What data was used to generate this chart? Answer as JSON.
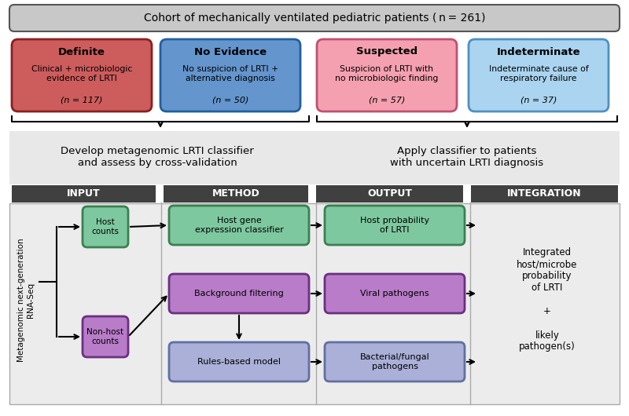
{
  "title": "Cohort of mechanically ventilated pediatric patients ( n = 261)",
  "cohort_box_color": "#c8c8c8",
  "cohort_box_edge": "#555555",
  "boxes": [
    {
      "label": "Definite",
      "sub": "Clinical + microbiologic\nevidence of LRTI",
      "n": "(n = 117)",
      "fill": "#cd5c5c",
      "edge": "#8b2020"
    },
    {
      "label": "No Evidence",
      "sub": "No suspicion of LRTI +\nalternative diagnosis",
      "n": "(n = 50)",
      "fill": "#6495cd",
      "edge": "#2060a0"
    },
    {
      "label": "Suspected",
      "sub": "Suspicion of LRTI with\nno microbiologic finding",
      "n": "(n = 57)",
      "fill": "#f4a0b0",
      "edge": "#c05070"
    },
    {
      "label": "Indeterminate",
      "sub": "Indeterminate cause of\nrespiratory failure",
      "n": "(n = 37)",
      "fill": "#aad4f0",
      "edge": "#5090c0"
    }
  ],
  "mid_bg": "#e8e8e8",
  "mid_left_text": "Develop metagenomic LRTI classifier\nand assess by cross-validation",
  "mid_right_text": "Apply classifier to patients\nwith uncertain LRTI diagnosis",
  "section_labels": [
    "INPUT",
    "METHOD",
    "OUTPUT",
    "INTEGRATION"
  ],
  "section_label_bg": "#404040",
  "section_label_color": "#ffffff",
  "bottom_bg": "#ececec",
  "bottom_edge": "#aaaaaa",
  "input_rna_text": "Metagenomic next-generation\nRNA-Seq",
  "host_counts_text": "Host\ncounts",
  "nonhost_counts_text": "Non-host\ncounts",
  "host_counts_color": "#7ec8a0",
  "host_counts_edge": "#3a8050",
  "nonhost_counts_color": "#b87cc8",
  "nonhost_counts_edge": "#6a3080",
  "method_boxes": [
    {
      "text": "Host gene\nexpression classifier",
      "fill": "#7ec8a0",
      "edge": "#3a8050"
    },
    {
      "text": "Background filtering",
      "fill": "#b87cc8",
      "edge": "#6a3080"
    },
    {
      "text": "Rules-based model",
      "fill": "#aab0d8",
      "edge": "#6070a0"
    }
  ],
  "output_boxes": [
    {
      "text": "Host probability\nof LRTI",
      "fill": "#7ec8a0",
      "edge": "#3a8050"
    },
    {
      "text": "Viral pathogens",
      "fill": "#b87cc8",
      "edge": "#6a3080"
    },
    {
      "text": "Bacterial/fungal\npathogens",
      "fill": "#aab0d8",
      "edge": "#6070a0"
    }
  ],
  "integration_text": "Integrated\nhost/microbe\nprobability\nof LRTI\n\n+\n\nlikely\npathogen(s)",
  "divider_color": "#aaaaaa",
  "arrow_color": "black",
  "arrow_lw": 1.5
}
